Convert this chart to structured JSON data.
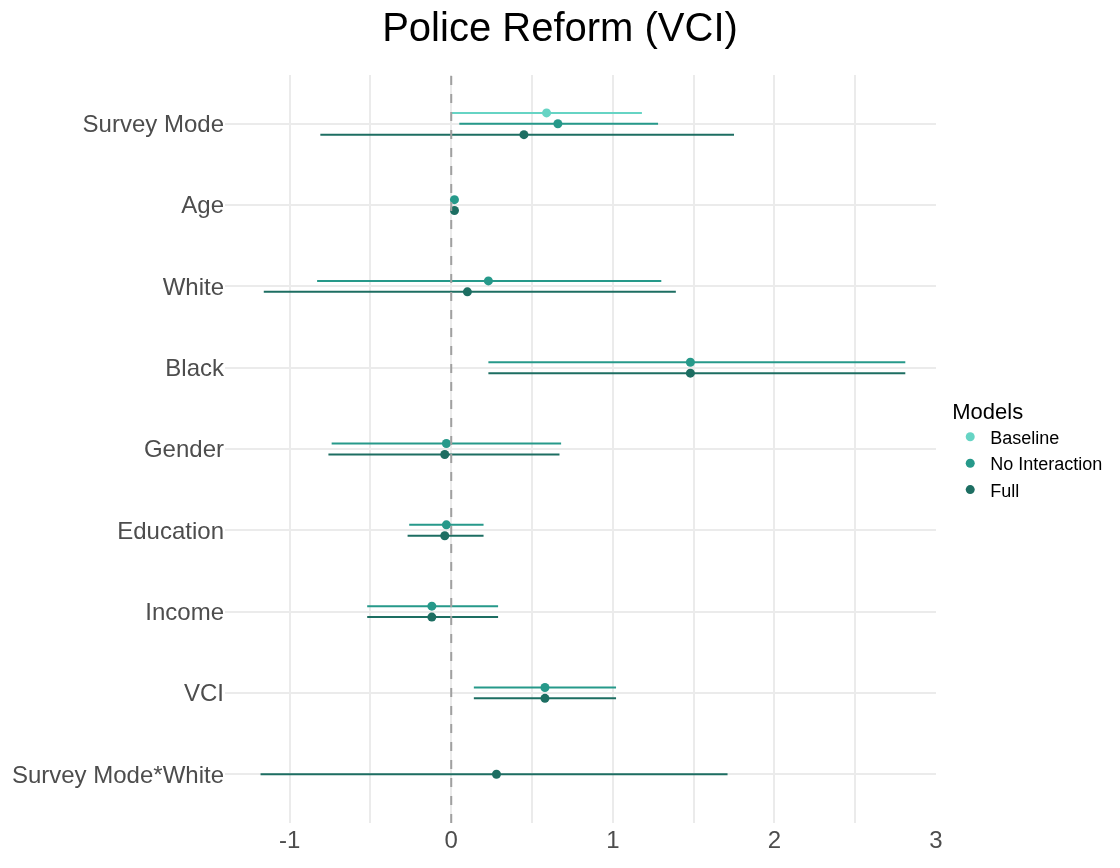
{
  "chart_data": {
    "type": "scatter",
    "orientation": "horizontal",
    "title": "Police Reform (VCI)",
    "legend_title": "Models",
    "legend": "right",
    "grid": true,
    "marker": "circle",
    "categories": [
      "Survey Mode",
      "Age",
      "White",
      "Black",
      "Gender",
      "Education",
      "Income",
      "VCI",
      "Survey Mode*White"
    ],
    "xlim": [
      -1.4,
      3.0
    ],
    "xticks": [
      -1,
      {
        "value": -0.5,
        "label": null
      },
      0,
      {
        "value": 0.5,
        "label": null
      },
      1,
      {
        "value": 1.5,
        "label": null
      },
      2,
      {
        "value": 2.5,
        "label": null
      },
      3
    ],
    "ref_lines": [
      {
        "axis": "x",
        "value": 0,
        "color": "#a0a0a0",
        "line_style": "dashed"
      }
    ],
    "series": [
      {
        "name": "Baseline",
        "color": "#66d4c4",
        "values": [
          0.59,
          null,
          null,
          null,
          null,
          null,
          null,
          null,
          null
        ],
        "errors": [
          [
            0.0,
            1.18
          ],
          null,
          null,
          null,
          null,
          null,
          null,
          null,
          null
        ]
      },
      {
        "name": "No Interaction",
        "color": "#26998a",
        "values": [
          0.66,
          0.02,
          0.23,
          1.48,
          -0.03,
          -0.03,
          -0.12,
          0.58,
          null
        ],
        "errors": [
          [
            0.05,
            1.28
          ],
          null,
          [
            -0.83,
            1.3
          ],
          [
            0.23,
            2.81
          ],
          [
            -0.74,
            0.68
          ],
          [
            -0.26,
            0.2
          ],
          [
            -0.52,
            0.29
          ],
          [
            0.14,
            1.02
          ],
          null
        ]
      },
      {
        "name": "Full",
        "color": "#1d6e62",
        "values": [
          0.45,
          0.02,
          0.1,
          1.48,
          -0.04,
          -0.04,
          -0.12,
          0.58,
          0.28
        ],
        "errors": [
          [
            -0.81,
            1.75
          ],
          null,
          [
            -1.16,
            1.39
          ],
          [
            0.23,
            2.81
          ],
          [
            -0.76,
            0.67
          ],
          [
            -0.27,
            0.2
          ],
          [
            -0.52,
            0.29
          ],
          [
            0.14,
            1.02
          ],
          [
            -1.18,
            1.71
          ]
        ]
      }
    ]
  }
}
